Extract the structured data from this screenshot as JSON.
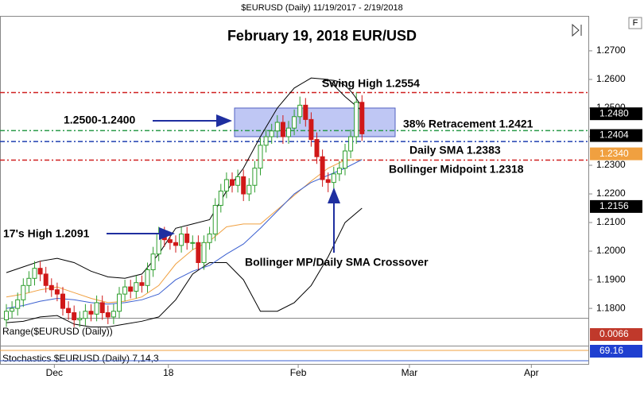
{
  "chart_data": {
    "type": "candlestick",
    "header": "$EURUSD (Daily)  11/19/2017 - 2/19/2018",
    "corner": "F",
    "title": "February 19, 2018 EUR/USD",
    "up_color": "#2e9e2e",
    "down_color": "#d01818",
    "open": [
      1.176,
      1.179,
      1.18,
      1.183,
      1.188,
      1.1905,
      1.194,
      1.192,
      1.188,
      1.1865,
      1.185,
      1.18,
      1.1785,
      1.176,
      1.1765,
      1.179,
      1.178,
      1.182,
      1.1785,
      1.177,
      1.179,
      1.185,
      1.1875,
      1.186,
      1.189,
      1.188,
      1.1935,
      1.199,
      1.206,
      1.204,
      1.203,
      1.202,
      1.206,
      1.203,
      1.203,
      1.196,
      1.203,
      1.206,
      1.216,
      1.221,
      1.225,
      1.223,
      1.226,
      1.22,
      1.223,
      1.229,
      1.237,
      1.24,
      1.242,
      1.245,
      1.24,
      1.243,
      1.247,
      1.251,
      1.246,
      1.239,
      1.233,
      1.225,
      1.224,
      1.227,
      1.229,
      1.235,
      1.24,
      1.252
    ],
    "high": [
      1.1815,
      1.1825,
      1.1855,
      1.1905,
      1.193,
      1.1965,
      1.1965,
      1.1945,
      1.1905,
      1.189,
      1.1875,
      1.1825,
      1.181,
      1.179,
      1.1815,
      1.1815,
      1.1845,
      1.1845,
      1.181,
      1.1815,
      1.1875,
      1.19,
      1.19,
      1.1915,
      1.1915,
      1.196,
      1.2015,
      1.2085,
      1.2085,
      1.2065,
      1.2055,
      1.2085,
      1.2085,
      1.2055,
      1.2055,
      1.2055,
      1.2085,
      1.2185,
      1.2235,
      1.2275,
      1.2275,
      1.2285,
      1.2285,
      1.2255,
      1.2315,
      1.2395,
      1.2425,
      1.2445,
      1.2475,
      1.2475,
      1.2455,
      1.2495,
      1.254,
      1.2535,
      1.2485,
      1.2415,
      1.2355,
      1.2275,
      1.2295,
      1.2315,
      1.2375,
      1.2425,
      1.2554,
      1.2545
    ],
    "low": [
      1.1735,
      1.1765,
      1.1775,
      1.1805,
      1.1855,
      1.188,
      1.1895,
      1.1855,
      1.184,
      1.1825,
      1.1775,
      1.176,
      1.1735,
      1.1735,
      1.174,
      1.1755,
      1.1755,
      1.176,
      1.1745,
      1.1745,
      1.1765,
      1.1825,
      1.1835,
      1.1835,
      1.1855,
      1.1855,
      1.191,
      1.1965,
      1.2015,
      1.2005,
      1.1995,
      1.1995,
      1.2005,
      1.2005,
      1.1935,
      1.1935,
      1.2005,
      1.2035,
      1.2135,
      1.2185,
      1.2205,
      1.2205,
      1.2175,
      1.2175,
      1.2205,
      1.2265,
      1.2345,
      1.2375,
      1.2395,
      1.2375,
      1.2375,
      1.2405,
      1.2445,
      1.2435,
      1.2365,
      1.2305,
      1.2225,
      1.2206,
      1.2215,
      1.2245,
      1.2265,
      1.2325,
      1.2375,
      1.2385
    ],
    "close": [
      1.179,
      1.18,
      1.183,
      1.188,
      1.1905,
      1.194,
      1.192,
      1.188,
      1.1865,
      1.185,
      1.18,
      1.1785,
      1.176,
      1.1765,
      1.179,
      1.178,
      1.182,
      1.1785,
      1.177,
      1.179,
      1.185,
      1.1875,
      1.186,
      1.189,
      1.188,
      1.1935,
      1.199,
      1.206,
      1.204,
      1.203,
      1.202,
      1.206,
      1.203,
      1.203,
      1.196,
      1.203,
      1.206,
      1.216,
      1.221,
      1.225,
      1.223,
      1.226,
      1.22,
      1.223,
      1.229,
      1.237,
      1.24,
      1.242,
      1.245,
      1.24,
      1.243,
      1.247,
      1.251,
      1.246,
      1.239,
      1.233,
      1.225,
      1.224,
      1.227,
      1.229,
      1.235,
      1.24,
      1.252,
      1.241
    ],
    "overlays": [
      {
        "color": "#000000",
        "x": [
          0,
          3,
          6,
          9,
          12,
          15,
          18,
          21,
          24,
          27,
          30,
          33,
          36,
          39,
          42,
          45,
          48,
          51,
          54,
          57,
          60,
          63
        ],
        "values": [
          1.1925,
          1.1945,
          1.1965,
          1.1975,
          1.196,
          1.193,
          1.191,
          1.1905,
          1.192,
          1.199,
          1.208,
          1.2095,
          1.211,
          1.221,
          1.229,
          1.24,
          1.25,
          1.257,
          1.2605,
          1.26,
          1.254,
          1.249
        ]
      },
      {
        "color": "#000000",
        "x": [
          0,
          3,
          6,
          9,
          12,
          15,
          18,
          21,
          24,
          27,
          30,
          33,
          36,
          39,
          42,
          45,
          48,
          51,
          54,
          57,
          60,
          63
        ],
        "values": [
          1.175,
          1.1755,
          1.177,
          1.1775,
          1.1745,
          1.1735,
          1.1735,
          1.1745,
          1.1755,
          1.177,
          1.183,
          1.192,
          1.196,
          1.196,
          1.19,
          1.179,
          1.179,
          1.182,
          1.188,
          1.198,
          1.21,
          1.215
        ]
      },
      {
        "color": "#f0a040",
        "x": [
          0,
          3,
          6,
          9,
          12,
          15,
          18,
          21,
          24,
          27,
          30,
          33,
          36,
          39,
          42,
          45,
          48,
          51,
          54,
          57,
          60,
          63
        ],
        "values": [
          1.184,
          1.185,
          1.1865,
          1.1875,
          1.1855,
          1.1835,
          1.182,
          1.1825,
          1.184,
          1.188,
          1.1955,
          1.2005,
          1.2035,
          1.2085,
          1.2095,
          1.2095,
          1.2145,
          1.2195,
          1.2245,
          1.229,
          1.2318,
          1.232
        ]
      },
      {
        "color": "#3a5fd0",
        "x": [
          0,
          3,
          6,
          9,
          12,
          15,
          18,
          21,
          24,
          27,
          30,
          33,
          36,
          39,
          42,
          45,
          48,
          51,
          54,
          57,
          60,
          63
        ],
        "values": [
          1.18,
          1.181,
          1.1825,
          1.1835,
          1.183,
          1.182,
          1.1815,
          1.182,
          1.183,
          1.185,
          1.19,
          1.193,
          1.195,
          1.199,
          1.2025,
          1.208,
          1.214,
          1.22,
          1.224,
          1.2265,
          1.229,
          1.232
        ]
      }
    ],
    "levels": [
      {
        "value": 1.2554,
        "color": "#d02020"
      },
      {
        "value": 1.2421,
        "color": "#2a9a4a"
      },
      {
        "value": 1.2383,
        "color": "#1f3fb0"
      },
      {
        "value": 1.2318,
        "color": "#d02020"
      }
    ],
    "zone": {
      "top": 1.25,
      "bottom": 1.24,
      "color": "#aab4f0"
    },
    "annotations": [
      "Swing High 1.2554",
      "38% Retracement 1.2421",
      "Daily SMA 1.2383",
      "Bollinger Midpoint 1.2318",
      "1.2500-1.2400",
      "17's High 1.2091",
      "Bollinger MP/Daily SMA Crossover"
    ],
    "ylim": [
      1.1767,
      1.2822
    ],
    "yticks": [
      {
        "value": 1.18,
        "label": "1.1800"
      },
      {
        "value": 1.19,
        "label": "1.1900"
      },
      {
        "value": 1.2,
        "label": "1.2000"
      },
      {
        "value": 1.21,
        "label": "1.2100"
      },
      {
        "value": 1.22,
        "label": "1.2200"
      },
      {
        "value": 1.23,
        "label": "1.2300"
      },
      {
        "value": 1.24,
        "label": "1.2400"
      },
      {
        "value": 1.25,
        "label": "1.2500"
      },
      {
        "value": 1.26,
        "label": "1.2600"
      },
      {
        "value": 1.27,
        "label": "1.2700"
      }
    ],
    "xticks": [
      {
        "value": 8.5,
        "label": "Dec"
      },
      {
        "value": 28.7,
        "label": "18"
      },
      {
        "value": 51.7,
        "label": "Feb"
      },
      {
        "value": 71.4,
        "label": "Mar"
      },
      {
        "value": 93,
        "label": "Apr"
      }
    ],
    "price_markers": [
      {
        "value": 1.248,
        "label": "1.2480",
        "color": "#000000"
      },
      {
        "value": 1.2404,
        "label": "1.2404",
        "color": "#000000"
      },
      {
        "value": 1.234,
        "label": "1.2340",
        "color": "#f0a040"
      },
      {
        "value": 1.2156,
        "label": "1.2156",
        "color": "#000000"
      }
    ],
    "panels": [
      {
        "label": "Range($EURUSD (Daily))",
        "value": 0.0066,
        "color": "#c0392b"
      },
      {
        "label": "Stochastics $EURUSD (Daily) 7,14,3",
        "value": 69.16,
        "color": "#1f3fd0"
      }
    ]
  }
}
